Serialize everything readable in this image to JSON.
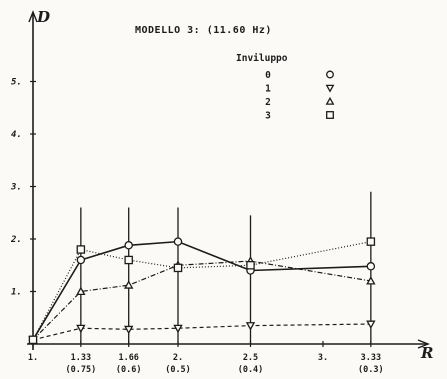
{
  "chart_data": {
    "type": "line",
    "title": "MODELLO 3:  (11.60 Hz)",
    "xlabel": "R",
    "ylabel": "D",
    "ylim": [
      0,
      6
    ],
    "yticks": [
      "1.",
      "2.",
      "3.",
      "4.",
      "5."
    ],
    "xticks": [
      {
        "x": 1.0,
        "label": "1.",
        "sub": ""
      },
      {
        "x": 1.33,
        "label": "1.33",
        "sub": "(0.75)"
      },
      {
        "x": 1.66,
        "label": "1.66",
        "sub": "(0.6)"
      },
      {
        "x": 2.0,
        "label": "2.",
        "sub": "(0.5)"
      },
      {
        "x": 2.5,
        "label": "2.5",
        "sub": "(0.4)"
      },
      {
        "x": 3.0,
        "label": "3.",
        "sub": ""
      },
      {
        "x": 3.33,
        "label": "3.33",
        "sub": "(0.3)"
      }
    ],
    "legend_title": "Inviluppo",
    "series": [
      {
        "name": "0",
        "marker": "circle",
        "dash": "",
        "x": [
          1.0,
          1.33,
          1.66,
          2.0,
          2.5,
          3.33
        ],
        "values": [
          0.08,
          1.6,
          1.88,
          1.95,
          1.4,
          1.48
        ]
      },
      {
        "name": "1",
        "marker": "triangle-down",
        "dash": "4,3",
        "x": [
          1.0,
          1.33,
          1.66,
          2.0,
          2.5,
          3.33
        ],
        "values": [
          0.08,
          0.3,
          0.28,
          0.3,
          0.35,
          0.38
        ]
      },
      {
        "name": "2",
        "marker": "triangle-up",
        "dash": "5,2,1,2",
        "x": [
          1.0,
          1.33,
          1.66,
          2.0,
          2.5,
          3.33
        ],
        "values": [
          0.08,
          1.0,
          1.12,
          1.5,
          1.58,
          1.2
        ]
      },
      {
        "name": "3",
        "marker": "square",
        "dash": "1,2",
        "x": [
          1.0,
          1.33,
          1.66,
          2.0,
          2.5,
          3.33
        ],
        "values": [
          0.08,
          1.8,
          1.6,
          1.45,
          1.5,
          1.95
        ]
      }
    ],
    "error_bars": [
      {
        "x": 1.33,
        "low": 0.0,
        "high": 2.6
      },
      {
        "x": 1.66,
        "low": 0.0,
        "high": 2.6
      },
      {
        "x": 2.0,
        "low": 0.0,
        "high": 2.6
      },
      {
        "x": 2.5,
        "low": 0.0,
        "high": 2.45
      },
      {
        "x": 3.33,
        "low": 0.0,
        "high": 2.9
      }
    ],
    "grid": false,
    "legend_position": "top-right",
    "colors": {
      "ink": "#1c1c1c",
      "paper": "#fbfaf7"
    }
  }
}
